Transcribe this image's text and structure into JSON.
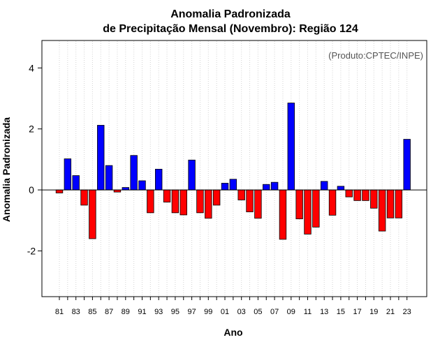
{
  "chart_data": {
    "type": "bar",
    "title_line1": "Anomalia Padronizada",
    "title_line2": "de Precipitação Mensal (Novembro): Região 124",
    "credit": "(Produto:CPTEC/INPE)",
    "xlabel": "Ano",
    "ylabel": "Anomalia Padronizada",
    "ylim": [
      -3.5,
      4.9
    ],
    "yticks": [
      -2,
      0,
      2,
      4
    ],
    "grid": true,
    "colors": {
      "positive": "#0000ff",
      "negative": "#ff0000",
      "zero_line": "#000000",
      "grid": "#d3d3d3"
    },
    "categories": [
      "81",
      "82",
      "83",
      "84",
      "85",
      "86",
      "87",
      "88",
      "89",
      "90",
      "91",
      "92",
      "93",
      "94",
      "95",
      "96",
      "97",
      "98",
      "99",
      "00",
      "01",
      "02",
      "03",
      "04",
      "05",
      "06",
      "07",
      "08",
      "09",
      "10",
      "11",
      "12",
      "13",
      "14",
      "15",
      "16",
      "17",
      "18",
      "19",
      "20",
      "21",
      "22",
      "23"
    ],
    "tick_labels": [
      "81",
      "83",
      "85",
      "87",
      "89",
      "91",
      "93",
      "95",
      "97",
      "99",
      "01",
      "03",
      "05",
      "07",
      "09",
      "11",
      "13",
      "15",
      "17",
      "19",
      "21",
      "23"
    ],
    "values": [
      -0.1,
      1.02,
      0.47,
      -0.5,
      -1.6,
      2.12,
      0.8,
      -0.07,
      0.08,
      1.13,
      0.3,
      -0.75,
      0.68,
      -0.4,
      -0.75,
      -0.82,
      0.98,
      -0.75,
      -0.93,
      -0.5,
      0.22,
      0.35,
      -0.33,
      -0.72,
      -0.93,
      0.18,
      0.25,
      -1.62,
      2.85,
      -0.95,
      -1.45,
      -1.22,
      0.28,
      -0.83,
      0.12,
      -0.23,
      -0.35,
      -0.35,
      -0.6,
      -1.35,
      -0.92,
      -0.92,
      1.66
    ]
  }
}
